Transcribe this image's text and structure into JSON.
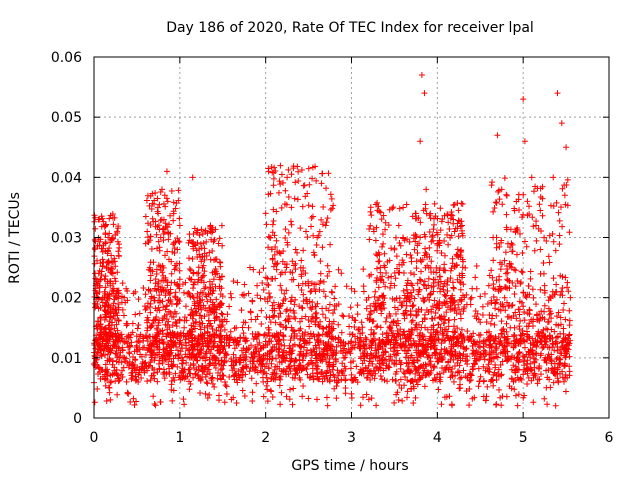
{
  "chart_data": {
    "type": "scatter",
    "title": "Day 186 of 2020, Rate Of TEC Index for receiver lpal",
    "xlabel": "GPS time / hours",
    "ylabel": "ROTI / TECUs",
    "xlim": [
      0,
      6
    ],
    "ylim": [
      0,
      0.06
    ],
    "xticks": [
      0,
      1,
      2,
      3,
      4,
      5,
      6
    ],
    "yticks": [
      0,
      0.01,
      0.02,
      0.03,
      0.04,
      0.05,
      0.06
    ],
    "xtick_labels": [
      "0",
      "1",
      "2",
      "3",
      "4",
      "5",
      "6"
    ],
    "ytick_labels": [
      "0",
      "0.01",
      "0.02",
      "0.03",
      "0.04",
      "0.05",
      "0.06"
    ],
    "grid": true,
    "marker": "+",
    "color": "#ff0000",
    "x_data_range": [
      0,
      5.55
    ],
    "series": [
      {
        "name": "ROTI",
        "points": [
          [
            0.0,
            0.009
          ],
          [
            0.02,
            0.022
          ],
          [
            0.05,
            0.016
          ],
          [
            0.08,
            0.012
          ],
          [
            0.1,
            0.008
          ],
          [
            0.12,
            0.02
          ],
          [
            0.15,
            0.007
          ],
          [
            0.18,
            0.005
          ],
          [
            0.2,
            0.027
          ],
          [
            0.22,
            0.024
          ],
          [
            0.25,
            0.018
          ],
          [
            0.3,
            0.01
          ],
          [
            0.35,
            0.02
          ],
          [
            0.4,
            0.004
          ],
          [
            0.45,
            0.009
          ],
          [
            0.5,
            0.012
          ],
          [
            0.55,
            0.008
          ],
          [
            0.6,
            0.018
          ],
          [
            0.62,
            0.031
          ],
          [
            0.65,
            0.025
          ],
          [
            0.7,
            0.02
          ],
          [
            0.75,
            0.014
          ],
          [
            0.8,
            0.01
          ],
          [
            0.85,
            0.041
          ],
          [
            0.86,
            0.036
          ],
          [
            0.9,
            0.026
          ],
          [
            0.95,
            0.02
          ],
          [
            1.0,
            0.032
          ],
          [
            1.05,
            0.015
          ],
          [
            1.1,
            0.008
          ],
          [
            1.15,
            0.04
          ],
          [
            1.2,
            0.024
          ],
          [
            1.25,
            0.018
          ],
          [
            1.3,
            0.004
          ],
          [
            1.4,
            0.012
          ],
          [
            1.45,
            0.029
          ],
          [
            1.5,
            0.016
          ],
          [
            1.6,
            0.02
          ],
          [
            1.7,
            0.01
          ],
          [
            1.8,
            0.015
          ],
          [
            1.9,
            0.022
          ],
          [
            2.0,
            0.034
          ],
          [
            2.05,
            0.03
          ],
          [
            2.1,
            0.017
          ],
          [
            2.2,
            0.026
          ],
          [
            2.25,
            0.04
          ],
          [
            2.3,
            0.035
          ],
          [
            2.35,
            0.028
          ],
          [
            2.4,
            0.016
          ],
          [
            2.5,
            0.022
          ],
          [
            2.6,
            0.03
          ],
          [
            2.65,
            0.039
          ],
          [
            2.7,
            0.032
          ],
          [
            2.8,
            0.018
          ],
          [
            2.9,
            0.012
          ],
          [
            3.0,
            0.004
          ],
          [
            3.1,
            0.014
          ],
          [
            3.2,
            0.02
          ],
          [
            3.3,
            0.027
          ],
          [
            3.4,
            0.016
          ],
          [
            3.5,
            0.022
          ],
          [
            3.55,
            0.003
          ],
          [
            3.6,
            0.03
          ],
          [
            3.7,
            0.026
          ],
          [
            3.8,
            0.046
          ],
          [
            3.82,
            0.057
          ],
          [
            3.85,
            0.054
          ],
          [
            3.87,
            0.038
          ],
          [
            3.9,
            0.025
          ],
          [
            4.0,
            0.029
          ],
          [
            4.1,
            0.019
          ],
          [
            4.2,
            0.031
          ],
          [
            4.3,
            0.026
          ],
          [
            4.4,
            0.02
          ],
          [
            4.5,
            0.01
          ],
          [
            4.6,
            0.022
          ],
          [
            4.65,
            0.03
          ],
          [
            4.7,
            0.047
          ],
          [
            4.75,
            0.038
          ],
          [
            4.8,
            0.024
          ],
          [
            4.9,
            0.015
          ],
          [
            4.95,
            0.008
          ],
          [
            5.0,
            0.053
          ],
          [
            5.02,
            0.046
          ],
          [
            5.05,
            0.036
          ],
          [
            5.1,
            0.04
          ],
          [
            5.15,
            0.032
          ],
          [
            5.2,
            0.028
          ],
          [
            5.25,
            0.022
          ],
          [
            5.3,
            0.016
          ],
          [
            5.35,
            0.04
          ],
          [
            5.4,
            0.054
          ],
          [
            5.45,
            0.049
          ],
          [
            5.5,
            0.045
          ],
          [
            5.55,
            0.02
          ]
        ]
      }
    ]
  }
}
